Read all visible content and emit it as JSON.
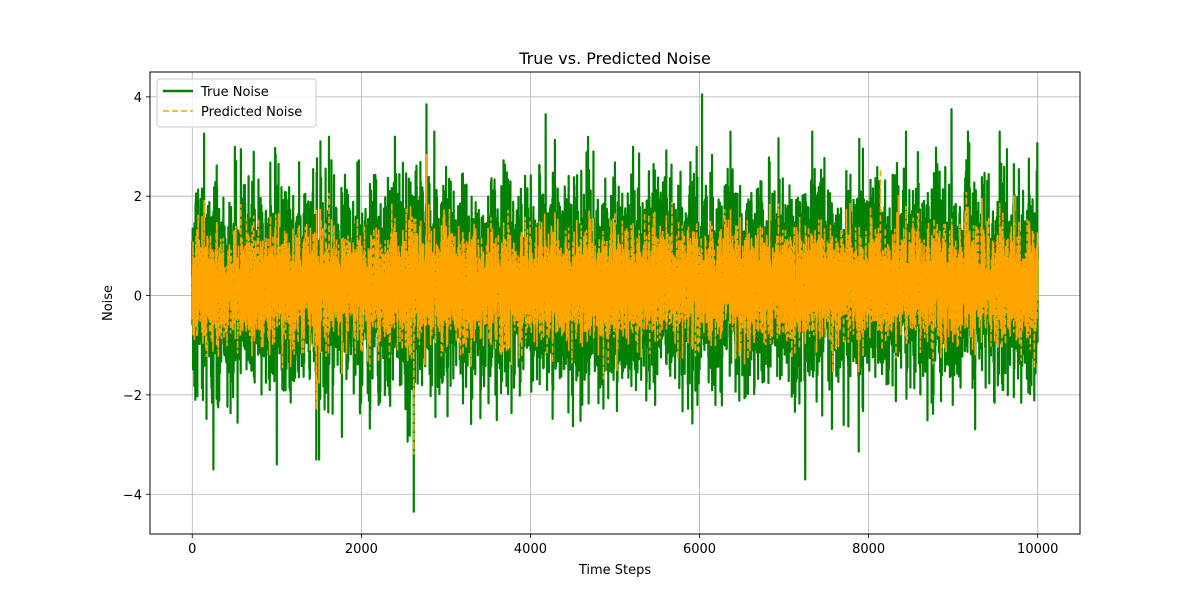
{
  "chart_data": {
    "type": "line",
    "title": "True vs. Predicted Noise",
    "xlabel": "Time Steps",
    "ylabel": "Noise",
    "xlim": [
      -500,
      10500
    ],
    "ylim": [
      -4.8,
      4.5
    ],
    "x_ticks": [
      0,
      2000,
      4000,
      6000,
      8000,
      10000
    ],
    "x_tick_labels": [
      "0",
      "2000",
      "4000",
      "6000",
      "8000",
      "10000"
    ],
    "y_ticks": [
      -4,
      -2,
      0,
      2,
      4
    ],
    "y_tick_labels": [
      "−4",
      "−2",
      "0",
      "2",
      "4"
    ],
    "grid": true,
    "legend_position": "top-left",
    "n_points": 10000,
    "series": [
      {
        "name": "True Noise",
        "color": "#008000",
        "style": "solid",
        "mean": 0.2,
        "std": 0.95,
        "notable_values": [
          {
            "x": 2620,
            "y": -4.35
          },
          {
            "x": 2770,
            "y": 3.85
          },
          {
            "x": 6030,
            "y": 4.05
          },
          {
            "x": 8980,
            "y": 3.75
          },
          {
            "x": 4180,
            "y": 3.65
          },
          {
            "x": 7250,
            "y": -3.7
          },
          {
            "x": 250,
            "y": -3.5
          },
          {
            "x": 1000,
            "y": -3.4
          }
        ]
      },
      {
        "name": "Predicted Noise",
        "color": "#ffa500",
        "style": "dashed",
        "mean": 0.2,
        "std": 0.6,
        "notable_values": [
          {
            "x": 2620,
            "y": -3.2
          },
          {
            "x": 2770,
            "y": 2.85
          },
          {
            "x": 8140,
            "y": 2.55
          }
        ]
      }
    ]
  }
}
